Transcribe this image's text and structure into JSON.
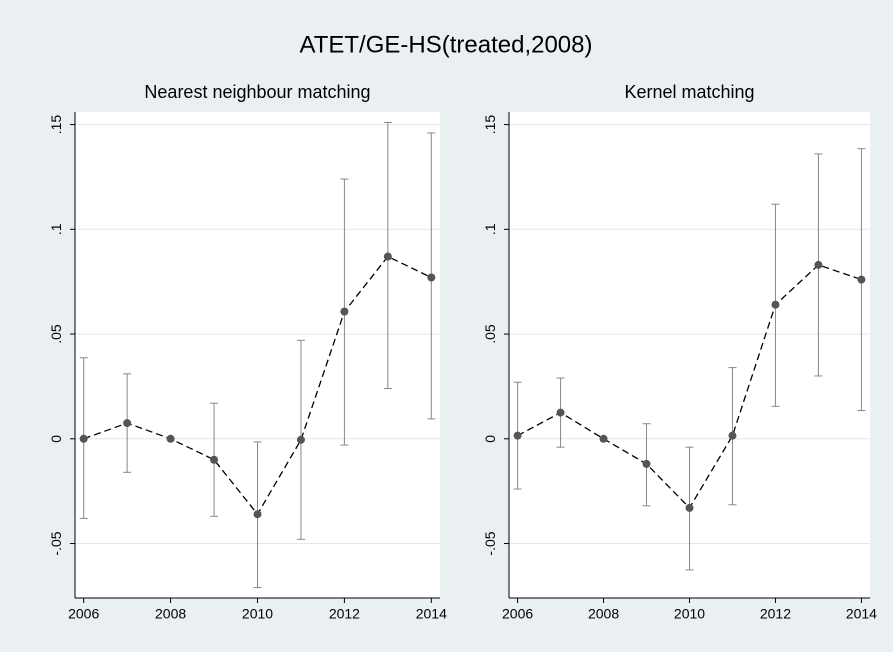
{
  "title": "ATET/GE-HS(treated,2008)",
  "chart_data": [
    {
      "type": "line",
      "title": "Nearest neighbour matching",
      "x": [
        2006,
        2007,
        2008,
        2009,
        2010,
        2011,
        2012,
        2013,
        2014
      ],
      "values": [
        0.0,
        0.0075,
        0.0,
        -0.01,
        -0.036,
        -0.0005,
        0.0607,
        0.087,
        0.077
      ],
      "ci_low": [
        -0.038,
        -0.016,
        null,
        -0.037,
        -0.071,
        -0.048,
        -0.003,
        0.024,
        0.0095
      ],
      "ci_high": [
        0.0387,
        0.031,
        null,
        0.017,
        -0.0015,
        0.047,
        0.124,
        0.151,
        0.146
      ],
      "color": "#555555",
      "error_color": "#888888",
      "xlim": [
        2005.8,
        2014.2
      ],
      "xticks": [
        2006,
        2008,
        2010,
        2012,
        2014
      ],
      "ylim": [
        -0.076,
        0.156
      ],
      "yticks": [
        {
          "value": -0.05,
          "label": "-.05"
        },
        0,
        {
          "value": 0.05,
          "label": ".05"
        },
        {
          "value": 0.1,
          "label": ".1"
        },
        {
          "value": 0.15,
          "label": ".15"
        }
      ],
      "grid": true
    },
    {
      "type": "line",
      "title": "Kernel matching",
      "x": [
        2006,
        2007,
        2008,
        2009,
        2010,
        2011,
        2012,
        2013,
        2014
      ],
      "values": [
        0.0015,
        0.0125,
        0.0,
        -0.012,
        -0.033,
        0.0015,
        0.064,
        0.083,
        0.076
      ],
      "ci_low": [
        -0.024,
        -0.004,
        null,
        -0.032,
        -0.0626,
        -0.0315,
        0.0155,
        0.03,
        0.0135
      ],
      "ci_high": [
        0.027,
        0.029,
        null,
        0.0072,
        -0.004,
        0.034,
        0.112,
        0.136,
        0.1385
      ],
      "color": "#555555",
      "error_color": "#888888",
      "xlim": [
        2005.8,
        2014.2
      ],
      "xticks": [
        2006,
        2008,
        2010,
        2012,
        2014
      ],
      "ylim": [
        -0.076,
        0.156
      ],
      "yticks": [
        {
          "value": -0.05,
          "label": "-.05"
        },
        0,
        {
          "value": 0.05,
          "label": ".05"
        },
        {
          "value": 0.1,
          "label": ".1"
        },
        {
          "value": 0.15,
          "label": ".15"
        }
      ],
      "grid": true
    }
  ]
}
